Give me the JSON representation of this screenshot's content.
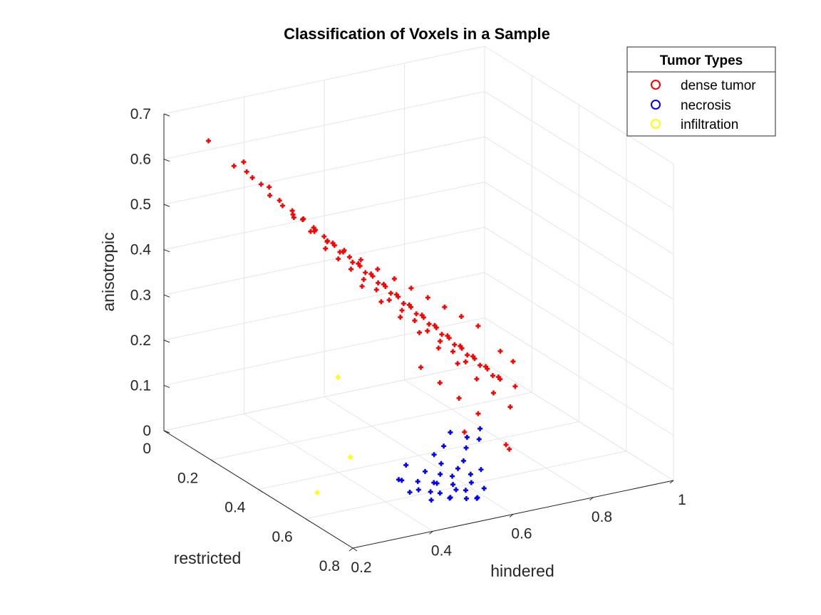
{
  "chart_data": {
    "type": "scatter",
    "title": "Classification of Voxels in a Sample",
    "xlabel": "hindered",
    "ylabel": "restricted",
    "zlabel": "anisotropic",
    "x_ticks": [
      "0.2",
      "0.4",
      "0.6",
      "0.8",
      "1"
    ],
    "y_ticks": [
      "0",
      "0.2",
      "0.4",
      "0.6",
      "0.8"
    ],
    "z_ticks": [
      "0",
      "0.1",
      "0.2",
      "0.3",
      "0.4",
      "0.5",
      "0.6",
      "0.7"
    ],
    "xlim": [
      0.2,
      1.0
    ],
    "ylim": [
      0.0,
      0.8
    ],
    "zlim": [
      0.0,
      0.7
    ],
    "grid": true,
    "projection": "3d",
    "legend": {
      "title": "Tumor Types",
      "placement": "top-right",
      "entries": [
        {
          "label": "dense tumor",
          "color": "#ff0000"
        },
        {
          "label": "necrosis",
          "color": "#0000ff"
        },
        {
          "label": "infiltration",
          "color": "#ffff00"
        }
      ]
    },
    "series": [
      {
        "name": "dense tumor",
        "color": "#ff0000",
        "marker": "+",
        "points": [
          [
            0.27,
            0.07,
            0.65
          ],
          [
            0.31,
            0.11,
            0.6
          ],
          [
            0.33,
            0.13,
            0.59
          ],
          [
            0.35,
            0.12,
            0.57
          ],
          [
            0.36,
            0.14,
            0.56
          ],
          [
            0.34,
            0.1,
            0.6
          ],
          [
            0.38,
            0.14,
            0.55
          ],
          [
            0.37,
            0.16,
            0.54
          ],
          [
            0.4,
            0.15,
            0.52
          ],
          [
            0.39,
            0.18,
            0.52
          ],
          [
            0.42,
            0.17,
            0.5
          ],
          [
            0.41,
            0.19,
            0.5
          ],
          [
            0.43,
            0.2,
            0.49
          ],
          [
            0.44,
            0.18,
            0.48
          ],
          [
            0.45,
            0.21,
            0.47
          ],
          [
            0.46,
            0.2,
            0.46
          ],
          [
            0.44,
            0.23,
            0.47
          ],
          [
            0.47,
            0.22,
            0.45
          ],
          [
            0.48,
            0.24,
            0.44
          ],
          [
            0.46,
            0.25,
            0.45
          ],
          [
            0.49,
            0.23,
            0.43
          ],
          [
            0.5,
            0.25,
            0.42
          ],
          [
            0.48,
            0.27,
            0.43
          ],
          [
            0.51,
            0.26,
            0.41
          ],
          [
            0.52,
            0.28,
            0.4
          ],
          [
            0.5,
            0.29,
            0.41
          ],
          [
            0.53,
            0.27,
            0.39
          ],
          [
            0.54,
            0.3,
            0.38
          ],
          [
            0.52,
            0.31,
            0.39
          ],
          [
            0.55,
            0.29,
            0.37
          ],
          [
            0.56,
            0.32,
            0.36
          ],
          [
            0.54,
            0.33,
            0.37
          ],
          [
            0.57,
            0.31,
            0.35
          ],
          [
            0.58,
            0.34,
            0.34
          ],
          [
            0.56,
            0.35,
            0.35
          ],
          [
            0.59,
            0.33,
            0.33
          ],
          [
            0.6,
            0.36,
            0.32
          ],
          [
            0.58,
            0.37,
            0.33
          ],
          [
            0.61,
            0.35,
            0.31
          ],
          [
            0.62,
            0.38,
            0.3
          ],
          [
            0.6,
            0.39,
            0.31
          ],
          [
            0.63,
            0.37,
            0.29
          ],
          [
            0.64,
            0.4,
            0.28
          ],
          [
            0.62,
            0.41,
            0.29
          ],
          [
            0.65,
            0.39,
            0.27
          ],
          [
            0.66,
            0.42,
            0.26
          ],
          [
            0.64,
            0.43,
            0.27
          ],
          [
            0.67,
            0.41,
            0.25
          ],
          [
            0.68,
            0.44,
            0.24
          ],
          [
            0.66,
            0.45,
            0.25
          ],
          [
            0.69,
            0.43,
            0.23
          ],
          [
            0.7,
            0.46,
            0.22
          ],
          [
            0.68,
            0.47,
            0.23
          ],
          [
            0.71,
            0.45,
            0.21
          ],
          [
            0.72,
            0.48,
            0.2
          ],
          [
            0.7,
            0.49,
            0.21
          ],
          [
            0.73,
            0.47,
            0.19
          ],
          [
            0.74,
            0.5,
            0.18
          ],
          [
            0.72,
            0.51,
            0.19
          ],
          [
            0.75,
            0.49,
            0.17
          ],
          [
            0.45,
            0.26,
            0.44
          ],
          [
            0.47,
            0.28,
            0.42
          ],
          [
            0.49,
            0.3,
            0.4
          ],
          [
            0.51,
            0.32,
            0.38
          ],
          [
            0.53,
            0.34,
            0.36
          ],
          [
            0.55,
            0.36,
            0.34
          ],
          [
            0.57,
            0.38,
            0.32
          ],
          [
            0.59,
            0.4,
            0.3
          ],
          [
            0.61,
            0.42,
            0.28
          ],
          [
            0.63,
            0.44,
            0.26
          ],
          [
            0.65,
            0.46,
            0.24
          ],
          [
            0.67,
            0.48,
            0.22
          ],
          [
            0.43,
            0.16,
            0.48
          ],
          [
            0.46,
            0.18,
            0.45
          ],
          [
            0.49,
            0.2,
            0.43
          ],
          [
            0.52,
            0.22,
            0.41
          ],
          [
            0.55,
            0.24,
            0.39
          ],
          [
            0.58,
            0.26,
            0.37
          ],
          [
            0.61,
            0.28,
            0.35
          ],
          [
            0.64,
            0.3,
            0.33
          ],
          [
            0.67,
            0.32,
            0.31
          ],
          [
            0.7,
            0.34,
            0.29
          ],
          [
            0.73,
            0.36,
            0.27
          ],
          [
            0.76,
            0.38,
            0.25
          ],
          [
            0.5,
            0.33,
            0.37
          ],
          [
            0.53,
            0.36,
            0.34
          ],
          [
            0.56,
            0.39,
            0.31
          ],
          [
            0.59,
            0.42,
            0.28
          ],
          [
            0.62,
            0.45,
            0.25
          ],
          [
            0.65,
            0.48,
            0.22
          ],
          [
            0.68,
            0.51,
            0.19
          ],
          [
            0.71,
            0.53,
            0.16
          ],
          [
            0.57,
            0.46,
            0.22
          ],
          [
            0.6,
            0.49,
            0.19
          ],
          [
            0.63,
            0.52,
            0.16
          ],
          [
            0.66,
            0.55,
            0.13
          ],
          [
            0.78,
            0.44,
            0.21
          ],
          [
            0.8,
            0.46,
            0.19
          ],
          [
            0.77,
            0.52,
            0.16
          ],
          [
            0.74,
            0.55,
            0.13
          ],
          [
            0.62,
            0.56,
            0.1
          ],
          [
            0.7,
            0.6,
            0.07
          ],
          [
            0.72,
            0.58,
            0.05
          ]
        ]
      },
      {
        "name": "necrosis",
        "color": "#0000ff",
        "marker": "+",
        "points": [
          [
            0.55,
            0.58,
            0.05
          ],
          [
            0.58,
            0.6,
            0.04
          ],
          [
            0.6,
            0.62,
            0.03
          ],
          [
            0.52,
            0.6,
            0.02
          ],
          [
            0.55,
            0.63,
            0.02
          ],
          [
            0.57,
            0.65,
            0.01
          ],
          [
            0.5,
            0.62,
            0.01
          ],
          [
            0.53,
            0.65,
            0.0
          ],
          [
            0.56,
            0.67,
            0.0
          ],
          [
            0.48,
            0.6,
            0.03
          ],
          [
            0.51,
            0.63,
            0.03
          ],
          [
            0.54,
            0.66,
            0.02
          ],
          [
            0.59,
            0.64,
            0.02
          ],
          [
            0.61,
            0.66,
            0.01
          ],
          [
            0.49,
            0.64,
            0.0
          ],
          [
            0.52,
            0.67,
            0.01
          ],
          [
            0.47,
            0.62,
            0.02
          ],
          [
            0.5,
            0.66,
            0.02
          ],
          [
            0.58,
            0.68,
            0.0
          ],
          [
            0.62,
            0.63,
            0.04
          ],
          [
            0.53,
            0.61,
            0.04
          ],
          [
            0.56,
            0.61,
            0.03
          ],
          [
            0.46,
            0.6,
            0.01
          ],
          [
            0.6,
            0.59,
            0.05
          ],
          [
            0.63,
            0.55,
            0.06
          ],
          [
            0.65,
            0.52,
            0.07
          ],
          [
            0.62,
            0.5,
            0.08
          ],
          [
            0.68,
            0.52,
            0.06
          ],
          [
            0.7,
            0.49,
            0.07
          ],
          [
            0.58,
            0.54,
            0.07
          ],
          [
            0.55,
            0.55,
            0.06
          ],
          [
            0.51,
            0.58,
            0.04
          ],
          [
            0.45,
            0.57,
            0.03
          ],
          [
            0.48,
            0.55,
            0.05
          ],
          [
            0.44,
            0.6,
            0.04
          ],
          [
            0.57,
            0.7,
            0.01
          ]
        ]
      },
      {
        "name": "infiltration",
        "color": "#ffff00",
        "marker": "+",
        "points": [
          [
            0.44,
            0.33,
            0.18
          ],
          [
            0.4,
            0.45,
            0.05
          ],
          [
            0.3,
            0.48,
            0.0
          ]
        ]
      }
    ]
  }
}
